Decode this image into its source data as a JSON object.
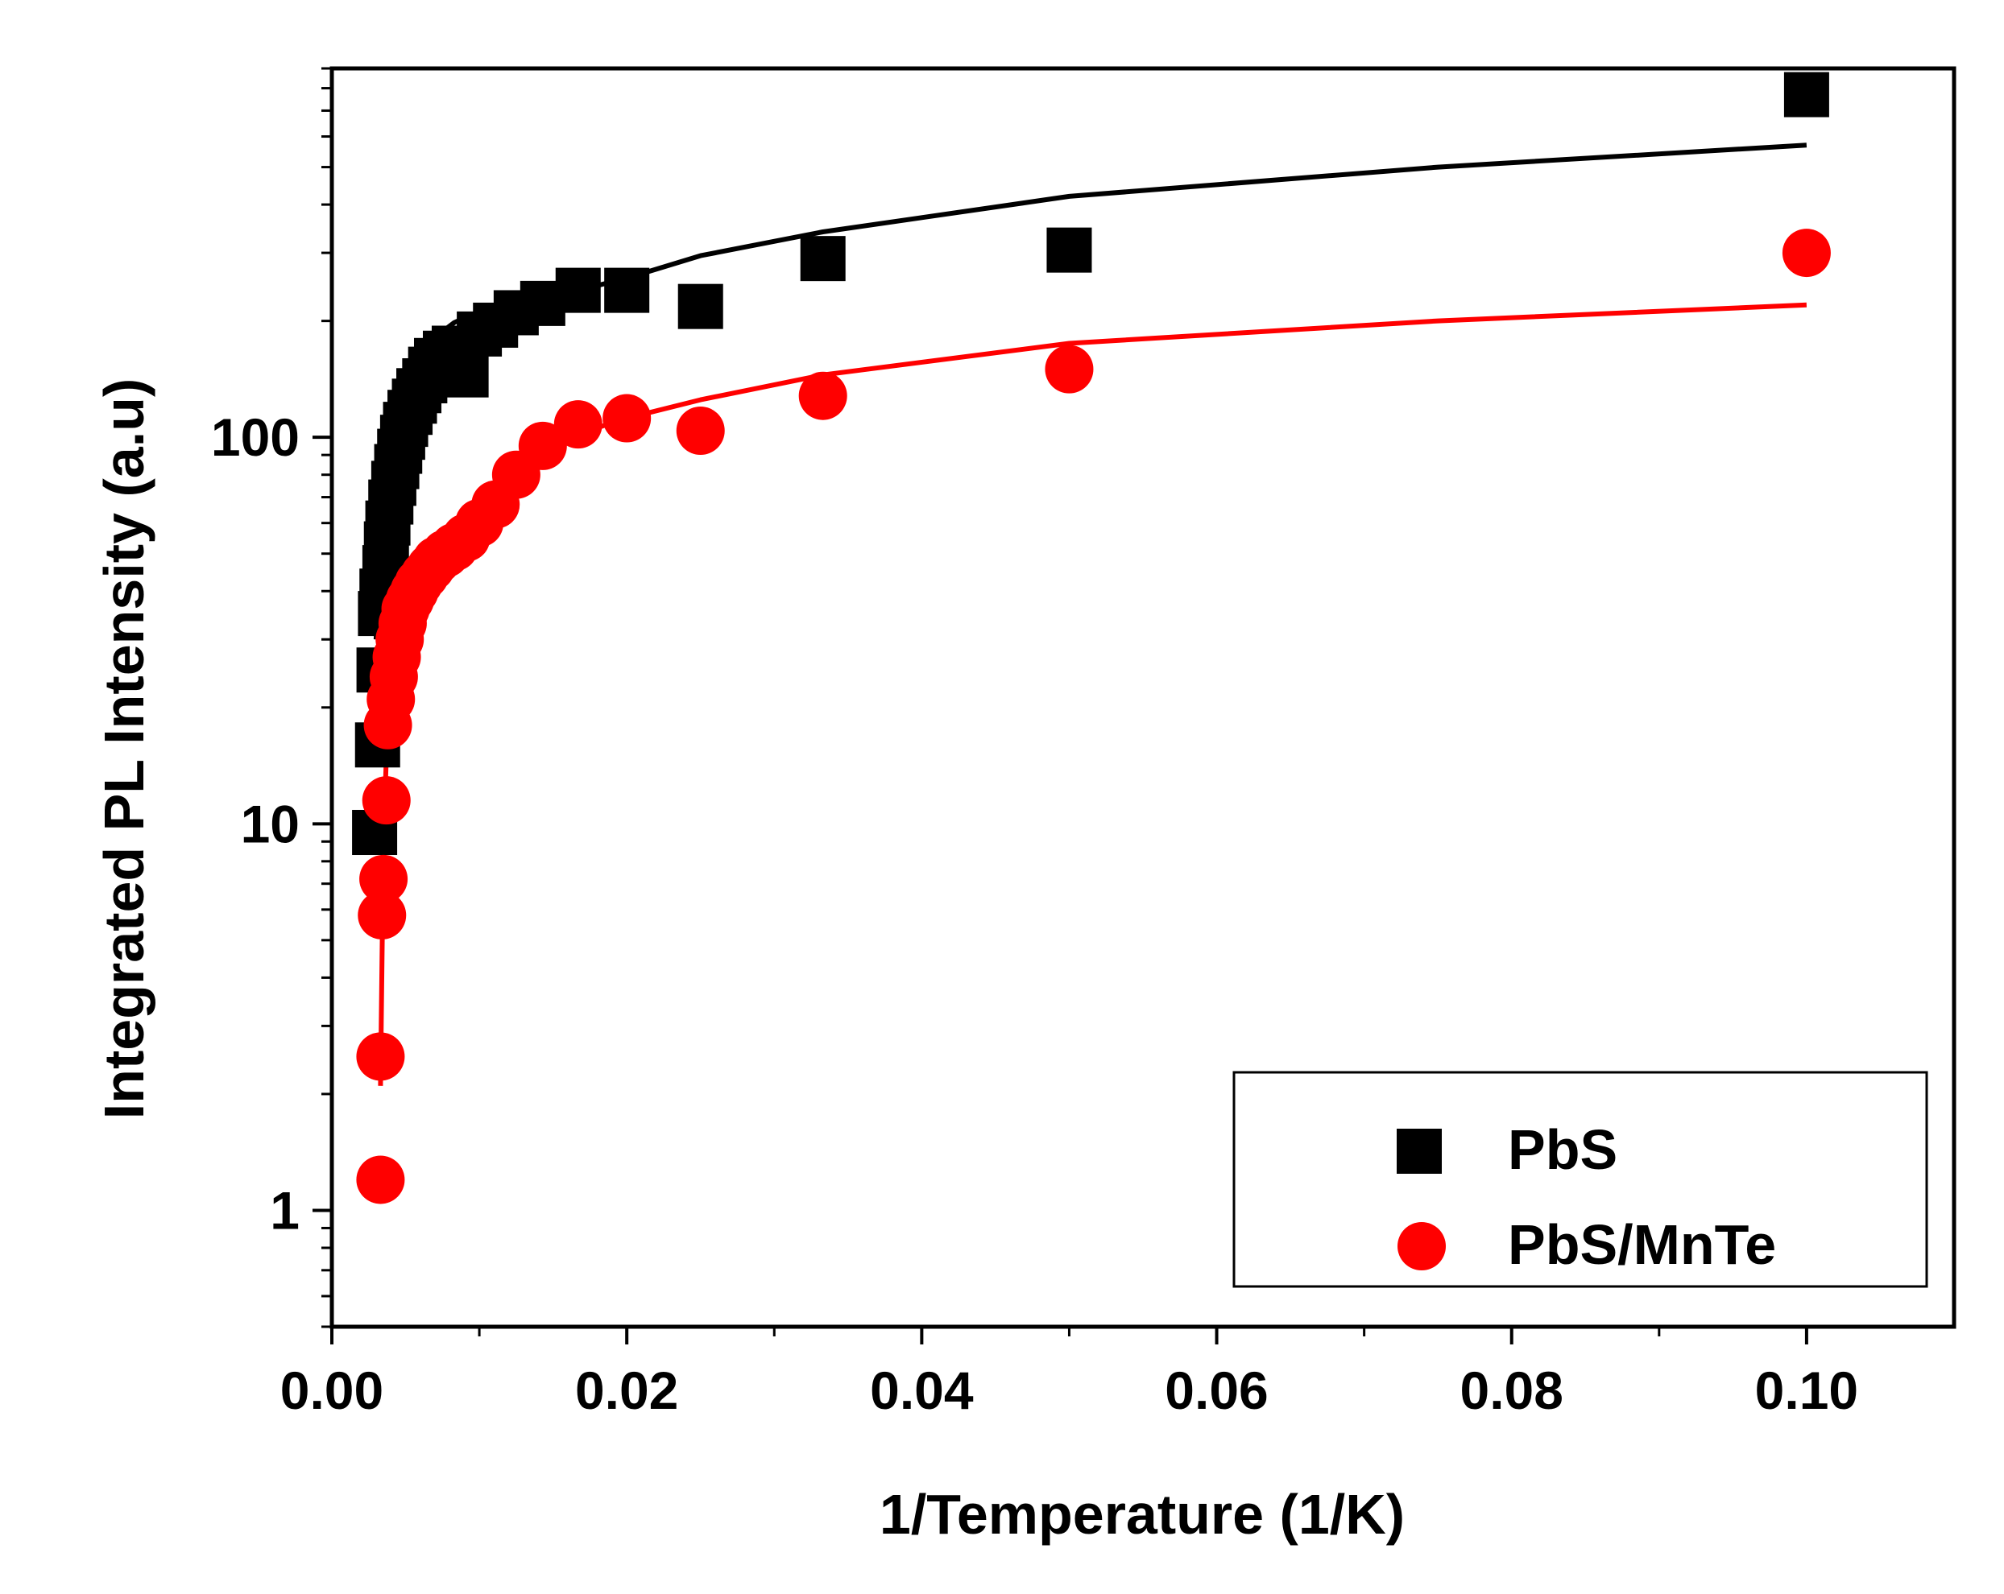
{
  "chart_data": {
    "type": "scatter",
    "title": "",
    "xlabel": "1/Temperature (1/K)",
    "ylabel": "Integrated PL Intensity (a.u)",
    "xlim": [
      0.0,
      0.11
    ],
    "ylim": [
      0.5,
      900
    ],
    "yscale": "log",
    "x_ticks": [
      0.0,
      0.02,
      0.04,
      0.06,
      0.08,
      0.1
    ],
    "x_tick_labels": [
      "0.00",
      "0.02",
      "0.04",
      "0.06",
      "0.08",
      "0.10"
    ],
    "y_ticks": [
      1,
      10,
      100
    ],
    "y_tick_labels": [
      "1",
      "10",
      "100"
    ],
    "legend_position": "bottom-right",
    "series": [
      {
        "name": "PbS",
        "marker": "square",
        "color": "#000000",
        "points": [
          [
            0.0029,
            9.5
          ],
          [
            0.0031,
            16
          ],
          [
            0.0032,
            25
          ],
          [
            0.0033,
            35
          ],
          [
            0.0034,
            40
          ],
          [
            0.0036,
            46
          ],
          [
            0.0037,
            53
          ],
          [
            0.0038,
            60
          ],
          [
            0.004,
            68
          ],
          [
            0.0042,
            76
          ],
          [
            0.0044,
            84
          ],
          [
            0.0046,
            92
          ],
          [
            0.0048,
            100
          ],
          [
            0.005,
            108
          ],
          [
            0.0053,
            116
          ],
          [
            0.0056,
            124
          ],
          [
            0.0059,
            132
          ],
          [
            0.0063,
            140
          ],
          [
            0.0067,
            150
          ],
          [
            0.0071,
            158
          ],
          [
            0.0077,
            165
          ],
          [
            0.0083,
            170
          ],
          [
            0.0091,
            145
          ],
          [
            0.01,
            185
          ],
          [
            0.0111,
            195
          ],
          [
            0.0125,
            210
          ],
          [
            0.0143,
            222
          ],
          [
            0.0167,
            240
          ],
          [
            0.02,
            240
          ],
          [
            0.025,
            218
          ],
          [
            0.0333,
            290
          ],
          [
            0.05,
            305
          ],
          [
            0.1,
            770
          ]
        ],
        "fit": [
          [
            0.003,
            30
          ],
          [
            0.0033,
            55
          ],
          [
            0.0037,
            80
          ],
          [
            0.0042,
            105
          ],
          [
            0.0048,
            130
          ],
          [
            0.0056,
            155
          ],
          [
            0.0067,
            178
          ],
          [
            0.0083,
            198
          ],
          [
            0.01,
            212
          ],
          [
            0.0125,
            225
          ],
          [
            0.0167,
            240
          ],
          [
            0.02,
            258
          ],
          [
            0.025,
            295
          ],
          [
            0.0333,
            340
          ],
          [
            0.05,
            420
          ],
          [
            0.075,
            500
          ],
          [
            0.1,
            570
          ]
        ]
      },
      {
        "name": "PbS/MnTe",
        "marker": "circle",
        "color": "#ff0000",
        "points": [
          [
            0.0033,
            1.2
          ],
          [
            0.0033,
            2.5
          ],
          [
            0.0034,
            5.8
          ],
          [
            0.0035,
            7.2
          ],
          [
            0.0037,
            11.5
          ],
          [
            0.0038,
            18
          ],
          [
            0.004,
            21
          ],
          [
            0.0042,
            24
          ],
          [
            0.0044,
            27
          ],
          [
            0.0046,
            30
          ],
          [
            0.0048,
            33
          ],
          [
            0.005,
            36
          ],
          [
            0.0053,
            38
          ],
          [
            0.0056,
            40
          ],
          [
            0.0059,
            42
          ],
          [
            0.0063,
            44
          ],
          [
            0.0067,
            46
          ],
          [
            0.0071,
            48
          ],
          [
            0.0077,
            50
          ],
          [
            0.0083,
            52
          ],
          [
            0.0091,
            55
          ],
          [
            0.01,
            60
          ],
          [
            0.0111,
            67
          ],
          [
            0.0125,
            80
          ],
          [
            0.0143,
            95
          ],
          [
            0.0167,
            108
          ],
          [
            0.02,
            112
          ],
          [
            0.025,
            104
          ],
          [
            0.0333,
            128
          ],
          [
            0.05,
            150
          ],
          [
            0.1,
            300
          ]
        ],
        "fit": [
          [
            0.0033,
            2.1
          ],
          [
            0.0034,
            4.5
          ],
          [
            0.0035,
            9
          ],
          [
            0.0037,
            15
          ],
          [
            0.004,
            21
          ],
          [
            0.0045,
            29
          ],
          [
            0.005,
            35
          ],
          [
            0.0056,
            40
          ],
          [
            0.0067,
            47
          ],
          [
            0.0083,
            55
          ],
          [
            0.01,
            65
          ],
          [
            0.0125,
            82
          ],
          [
            0.0167,
            102
          ],
          [
            0.02,
            112
          ],
          [
            0.025,
            125
          ],
          [
            0.0333,
            145
          ],
          [
            0.05,
            175
          ],
          [
            0.075,
            200
          ],
          [
            0.1,
            220
          ]
        ]
      }
    ]
  }
}
